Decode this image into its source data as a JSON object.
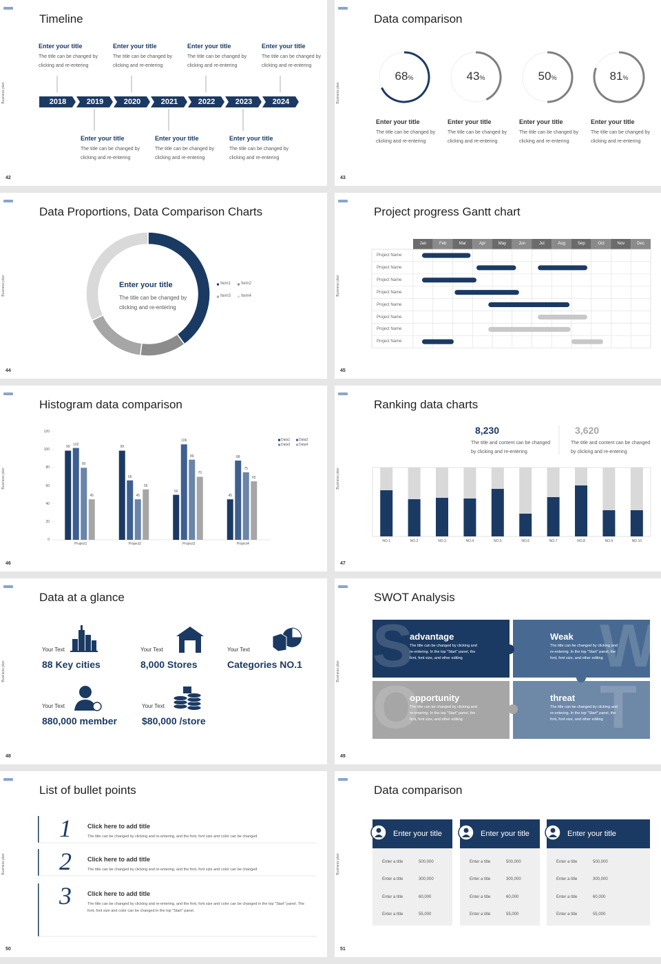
{
  "side_label": "Business plan",
  "slides": [
    {
      "number": "42",
      "title": "Timeline",
      "years": [
        "2018",
        "2019",
        "2020",
        "2021",
        "2022",
        "2023",
        "2024"
      ],
      "events": [
        {
          "title": "Enter your title",
          "text": "The title can be changed by clicking and re-entering"
        },
        {
          "title": "Enter your title",
          "text": "The title can be changed by clicking and re-entering"
        },
        {
          "title": "Enter your title",
          "text": "The title can be changed by clicking and re-entering"
        },
        {
          "title": "Enter your title",
          "text": "The title can be changed by clicking and re-entering"
        },
        {
          "title": "Enter your title",
          "text": "The title can be changed by clicking and re-entering"
        },
        {
          "title": "Enter your title",
          "text": "The title can be changed by clicking and re-entering"
        },
        {
          "title": "Enter your title",
          "text": "The title can be changed by clicking and re-entering"
        }
      ]
    },
    {
      "number": "43",
      "title": "Data comparison",
      "chart_data": {
        "type": "ring",
        "values": [
          68,
          43,
          50,
          81
        ],
        "unit": "%",
        "colors": [
          "#1b3a63",
          "#7f7f7f",
          "#7f7f7f",
          "#7f7f7f"
        ],
        "ylim": [
          0,
          100
        ]
      },
      "items": [
        {
          "title": "Enter your title",
          "text": "The title can be changed by clicking and re-entering"
        },
        {
          "title": "Enter your title",
          "text": "The title can be changed by clicking and re-entering"
        },
        {
          "title": "Enter your title",
          "text": "The title can be changed by clicking and re-entering"
        },
        {
          "title": "Enter your title",
          "text": "The title can be changed by clicking and re-entering"
        }
      ]
    },
    {
      "number": "44",
      "title": "Data Proportions, Data Comparison Charts",
      "chart_data": {
        "type": "donut",
        "categories": [
          "Item1",
          "Item2",
          "Item3",
          "Item4"
        ],
        "values": [
          40,
          12,
          16,
          32
        ],
        "colors": [
          "#1b3a63",
          "#8c8c8c",
          "#a6a6a6",
          "#d9d9d9"
        ]
      },
      "center": {
        "title": "Enter your title",
        "text": "The title can be changed by clicking and re-entering"
      }
    },
    {
      "number": "45",
      "title": "Project progress Gantt chart",
      "chart_data": {
        "type": "gantt",
        "categories": [
          "Jan",
          "Feb",
          "Mar",
          "Apr",
          "May",
          "Jun",
          "Jul",
          "Aug",
          "Sep",
          "Oct",
          "Nov",
          "Dec"
        ],
        "xlim": [
          0,
          12
        ],
        "rows": [
          {
            "name": "Project Name",
            "bars": [
              {
                "start": 0.45,
                "end": 2.9,
                "color": "#1b3a63"
              }
            ]
          },
          {
            "name": "Project Name",
            "bars": [
              {
                "start": 3.2,
                "end": 5.2,
                "color": "#1b3a63"
              },
              {
                "start": 6.3,
                "end": 8.8,
                "color": "#1b3a63"
              }
            ]
          },
          {
            "name": "Project Name",
            "bars": [
              {
                "start": 0.45,
                "end": 3.2,
                "color": "#1b3a63"
              }
            ]
          },
          {
            "name": "Project Name",
            "bars": [
              {
                "start": 2.1,
                "end": 5.35,
                "color": "#1b3a63"
              }
            ]
          },
          {
            "name": "Project Name",
            "bars": [
              {
                "start": 3.8,
                "end": 7.9,
                "color": "#1b3a63"
              }
            ]
          },
          {
            "name": "Project Name",
            "bars": [
              {
                "start": 6.3,
                "end": 8.8,
                "color": "#c8c8c8"
              }
            ]
          },
          {
            "name": "Project Name",
            "bars": [
              {
                "start": 3.8,
                "end": 7.95,
                "color": "#c8c8c8"
              }
            ]
          },
          {
            "name": "Project Name",
            "bars": [
              {
                "start": 0.45,
                "end": 2.05,
                "color": "#1b3a63"
              },
              {
                "start": 8.0,
                "end": 9.6,
                "color": "#c8c8c8"
              }
            ]
          }
        ]
      }
    },
    {
      "number": "46",
      "title": "Histogram data comparison",
      "chart_data": {
        "type": "bar",
        "categories": [
          "Project1",
          "Project2",
          "Project3",
          "Project4"
        ],
        "series": [
          {
            "name": "Data1",
            "color": "#1b3a63",
            "values": [
              99,
              99,
              50,
              45
            ]
          },
          {
            "name": "Data2",
            "color": "#3e6090",
            "values": [
              102,
              66,
              106,
              88
            ]
          },
          {
            "name": "Data3",
            "color": "#6985a8",
            "values": [
              80,
              45,
              89,
              75
            ]
          },
          {
            "name": "Data4",
            "color": "#a6a6a6",
            "values": [
              45,
              56,
              70,
              65
            ]
          }
        ],
        "ylim": [
          0,
          120
        ],
        "yticks": [
          0,
          20,
          40,
          60,
          80,
          100,
          120
        ],
        "legend": "top-right"
      }
    },
    {
      "number": "47",
      "title": "Ranking data charts",
      "stats": [
        {
          "value": "8,230",
          "text": "The title and content can be changed by clicking and re-entering",
          "color": "#1b3a63"
        },
        {
          "value": "3,620",
          "text": "The title and content can be changed by clicking and re-entering",
          "color": "#a6a6a6"
        }
      ],
      "chart_data": {
        "type": "stacked-bar",
        "categories": [
          "NO.1",
          "NO.2",
          "NO.3",
          "NO.4",
          "NO.5",
          "NO.6",
          "NO.7",
          "NO.8",
          "NO.9",
          "NO.10"
        ],
        "series": [
          {
            "color": "#1b3a63",
            "values": [
              67,
              54,
              56,
              55,
              69,
              33,
              57,
              74,
              38,
              38
            ]
          },
          {
            "color": "#d9d9d9",
            "values": [
              33,
              46,
              44,
              45,
              31,
              67,
              43,
              26,
              62,
              62
            ]
          }
        ],
        "ylim": [
          0,
          100
        ]
      }
    },
    {
      "number": "48",
      "title": "Data at a glance",
      "items": [
        {
          "label": "Your Text",
          "value": "88 Key cities"
        },
        {
          "label": "Your Text",
          "value": "8,000 Stores"
        },
        {
          "label": "Your Text",
          "value": "Categories NO.1"
        },
        {
          "label": "Your Text",
          "value": "880,000 member"
        },
        {
          "label": "Your Text",
          "value": "$80,000 /store"
        }
      ]
    },
    {
      "number": "49",
      "title": "SWOT Analysis",
      "quadrants": [
        {
          "letter": "S",
          "title": "advantage",
          "color": "#1b3a63",
          "text": "The title can be changed by clicking and re-entering. In the top \"Start\" panel, the font, font size, and other editing"
        },
        {
          "letter": "W",
          "title": "Weak",
          "color": "#486a92",
          "text": "The title can be changed by clicking and re-entering. In the top \"Start\" panel, the font, font size, and other editing"
        },
        {
          "letter": "O",
          "title": "opportunity",
          "color": "#a6a6a6",
          "text": "The title can be changed by clicking and re-entering. In the top \"Start\" panel, the font, font size, and other editing"
        },
        {
          "letter": "T",
          "title": "threat",
          "color": "#6e88a8",
          "text": "The title can be changed by clicking and re-entering. In the top \"Start\" panel, the font, font size, and other editing"
        }
      ]
    },
    {
      "number": "50",
      "title": "List of bullet points",
      "items": [
        {
          "number": "1",
          "title": "Click here to add title",
          "text": "The title can be changed by clicking and re-entering, and the font, font size and color can be changed"
        },
        {
          "number": "2",
          "title": "Click here to add title",
          "text": "The title can be changed by clicking and re-entering, and the font, font size and color can be changed"
        },
        {
          "number": "3",
          "title": "Click here to add title",
          "text": "The title can be changed by clicking and re-entering, and the font, font size and color can be changed in the top \"Start\" panel. The font, font size and color can be changed in the top \"Start\" panel."
        }
      ]
    },
    {
      "number": "51",
      "title": "Data comparison",
      "cards": [
        {
          "title": "Enter your title",
          "rows": [
            {
              "label": "Enter a title",
              "value": "500,000"
            },
            {
              "label": "Enter a title",
              "value": "300,000"
            },
            {
              "label": "Enter a title",
              "value": "60,000"
            },
            {
              "label": "Enter a title",
              "value": "55,000"
            }
          ]
        },
        {
          "title": "Enter your title",
          "rows": [
            {
              "label": "Enter a title",
              "value": "500,000"
            },
            {
              "label": "Enter a title",
              "value": "300,000"
            },
            {
              "label": "Enter a title",
              "value": "60,000"
            },
            {
              "label": "Enter a title",
              "value": "55,000"
            }
          ]
        },
        {
          "title": "Enter your title",
          "rows": [
            {
              "label": "Enter a title",
              "value": "500,000"
            },
            {
              "label": "Enter a title",
              "value": "300,000"
            },
            {
              "label": "Enter a title",
              "value": "60,000"
            },
            {
              "label": "Enter a title",
              "value": "55,000"
            }
          ]
        }
      ]
    }
  ]
}
